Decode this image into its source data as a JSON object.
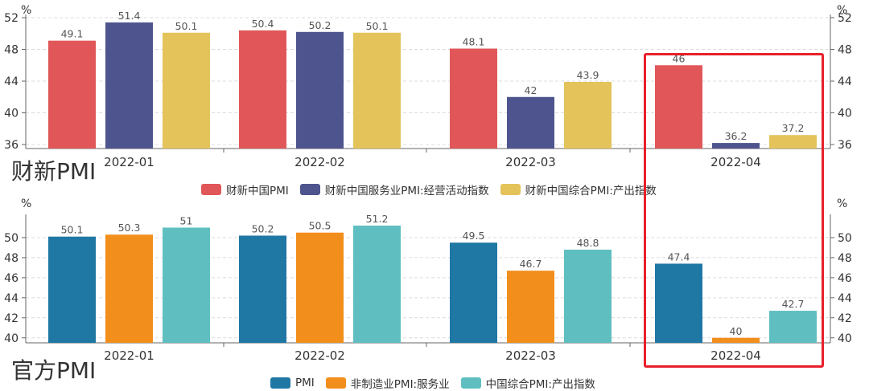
{
  "chart_data": [
    {
      "type": "bar",
      "title": "财新PMI",
      "unit": "%",
      "categories": [
        "2022-01",
        "2022-02",
        "2022-03",
        "2022-04"
      ],
      "ylim": [
        35.5,
        52
      ],
      "yticks": [
        36,
        40,
        44,
        48,
        52
      ],
      "series": [
        {
          "name": "财新中国PMI",
          "color": "#e15759",
          "values": [
            49.1,
            50.4,
            48.1,
            46
          ]
        },
        {
          "name": "财新中国服务业PMI:经营活动指数",
          "color": "#4e558e",
          "values": [
            51.4,
            50.2,
            42,
            36.2
          ]
        },
        {
          "name": "财新中国综合PMI:产出指数",
          "color": "#e3c35a",
          "values": [
            50.1,
            50.1,
            43.9,
            37.2
          ]
        }
      ],
      "value_labels": [
        [
          "49.1",
          "50.4",
          "48.1",
          "46"
        ],
        [
          "51.4",
          "50.2",
          "42",
          "36.2"
        ],
        [
          "50.1",
          "50.1",
          "43.9",
          "37.2"
        ]
      ],
      "legend_position": "bottom"
    },
    {
      "type": "bar",
      "title": "官方PMI",
      "unit": "%",
      "categories": [
        "2022-01",
        "2022-02",
        "2022-03",
        "2022-04"
      ],
      "ylim": [
        39.5,
        52
      ],
      "yticks": [
        40,
        42,
        44,
        46,
        48,
        50
      ],
      "series": [
        {
          "name": "PMI",
          "color": "#1f77a4",
          "values": [
            50.1,
            50.2,
            49.5,
            47.4
          ]
        },
        {
          "name": "非制造业PMI:服务业",
          "color": "#f28e1c",
          "values": [
            50.3,
            50.5,
            46.7,
            40
          ]
        },
        {
          "name": "中国综合PMI:产出指数",
          "color": "#5fbfc0",
          "values": [
            51,
            51.2,
            48.8,
            42.7
          ]
        }
      ],
      "value_labels": [
        [
          "50.1",
          "50.2",
          "49.5",
          "47.4"
        ],
        [
          "50.3",
          "50.5",
          "46.7",
          "40"
        ],
        [
          "51",
          "51.2",
          "48.8",
          "42.7"
        ]
      ],
      "legend_position": "bottom"
    }
  ],
  "highlight": {
    "category": "2022-04",
    "color": "#e8202b"
  }
}
